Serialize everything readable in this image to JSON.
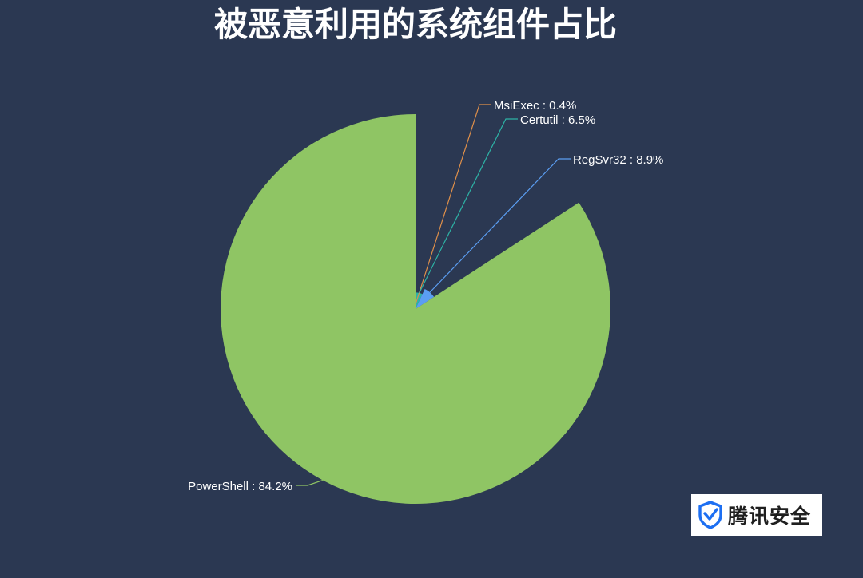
{
  "chart_data": {
    "type": "pie",
    "title": "被恶意利用的系统组件占比",
    "start_angle_deg": 90,
    "direction": "clockwise",
    "slices": [
      {
        "name": "MsiExec",
        "value": 0.4,
        "label": "MsiExec : 0.4%",
        "color": "#e0904a"
      },
      {
        "name": "Certutil",
        "value": 6.5,
        "label": "Certutil : 6.5%",
        "color": "#2db3a6"
      },
      {
        "name": "RegSvr32",
        "value": 8.9,
        "label": "RegSvr32 : 8.9%",
        "color": "#5b9ef2"
      },
      {
        "name": "PowerShell",
        "value": 84.2,
        "label": "PowerShell : 84.2%",
        "color": "#8fc564"
      }
    ]
  },
  "brand": {
    "name": "腾讯安全",
    "icon": "shield-check-icon",
    "shield_color": "#1d6ff2"
  }
}
